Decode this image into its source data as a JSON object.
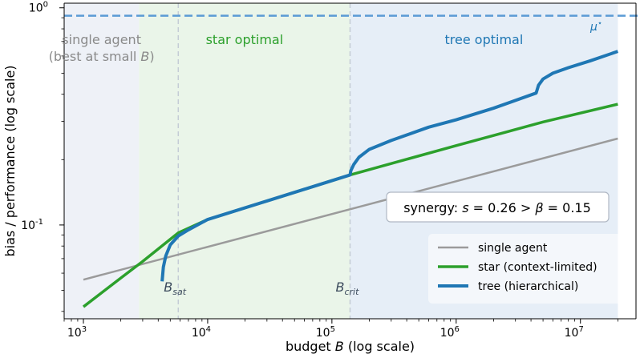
{
  "chart_data": {
    "type": "line",
    "xlabel": "budget B (log scale)",
    "ylabel": "bias / performance (log scale)",
    "x_scale": "log",
    "y_scale": "log",
    "xlim": [
      700,
      28000000
    ],
    "ylim": [
      0.037,
      1.05
    ],
    "x_ticks": [
      1000,
      10000,
      100000,
      1000000,
      10000000
    ],
    "x_tick_labels": [
      "10^3",
      "10^4",
      "10^5",
      "10^6",
      "10^7"
    ],
    "y_ticks": [
      0.1,
      1
    ],
    "y_tick_labels": [
      "10^-1",
      "10^0"
    ],
    "grid": false,
    "legend_position": "lower-right",
    "legend": [
      "single agent",
      "star (context-limited)",
      "tree (hierarchical)"
    ],
    "regions": [
      {
        "label_lines": [
          "single agent",
          "(best at small B)"
        ],
        "x_range": [
          700,
          2800
        ],
        "color": "#eef1f7",
        "label_color": "#8a8a8a"
      },
      {
        "label_lines": [
          "star optimal"
        ],
        "x_range": [
          2800,
          140000
        ],
        "color": "#eaf5e9",
        "label_color": "#2ca02c"
      },
      {
        "label_lines": [
          "tree optimal"
        ],
        "x_range": [
          140000,
          20000000
        ],
        "color": "#e6eef7",
        "label_color": "#1f77b4"
      }
    ],
    "vlines": [
      {
        "x": 5800,
        "label": "B",
        "sub": "sat"
      },
      {
        "x": 140000,
        "label": "B",
        "sub": "crit"
      }
    ],
    "hline": {
      "y": 0.92,
      "label": "μ",
      "sup": "⋆",
      "color": "#5b9bd5"
    },
    "annotation": "synergy: s = 0.26 > β = 0.15",
    "series": [
      {
        "name": "single agent",
        "color": "#9b9b9b",
        "width": 2.5,
        "points": [
          [
            1000,
            0.056
          ],
          [
            20000000,
            0.25
          ]
        ]
      },
      {
        "name": "star (context-limited)",
        "color": "#2ca02c",
        "width": 3.5,
        "points": [
          [
            1000,
            0.042
          ],
          [
            2000,
            0.057
          ],
          [
            3000,
            0.068
          ],
          [
            5800,
            0.092
          ],
          [
            10000,
            0.106
          ],
          [
            30000,
            0.129
          ],
          [
            60000,
            0.146
          ],
          [
            140000,
            0.17
          ],
          [
            1000000,
            0.232
          ],
          [
            5000000,
            0.298
          ],
          [
            20000000,
            0.36
          ]
        ]
      },
      {
        "name": "tree (hierarchical)",
        "color": "#1f77b4",
        "width": 4,
        "points": [
          [
            4300,
            0.055
          ],
          [
            4400,
            0.064
          ],
          [
            4600,
            0.072
          ],
          [
            5000,
            0.081
          ],
          [
            5800,
            0.089
          ],
          [
            7000,
            0.095
          ],
          [
            10000,
            0.106
          ],
          [
            30000,
            0.129
          ],
          [
            60000,
            0.146
          ],
          [
            140000,
            0.17
          ],
          [
            142000,
            0.178
          ],
          [
            150000,
            0.19
          ],
          [
            165000,
            0.205
          ],
          [
            200000,
            0.223
          ],
          [
            300000,
            0.245
          ],
          [
            600000,
            0.282
          ],
          [
            1000000,
            0.305
          ],
          [
            2000000,
            0.345
          ],
          [
            4400000,
            0.405
          ],
          [
            4600000,
            0.44
          ],
          [
            5000000,
            0.47
          ],
          [
            6000000,
            0.5
          ],
          [
            8000000,
            0.53
          ],
          [
            12000000,
            0.57
          ],
          [
            20000000,
            0.63
          ]
        ]
      }
    ]
  }
}
